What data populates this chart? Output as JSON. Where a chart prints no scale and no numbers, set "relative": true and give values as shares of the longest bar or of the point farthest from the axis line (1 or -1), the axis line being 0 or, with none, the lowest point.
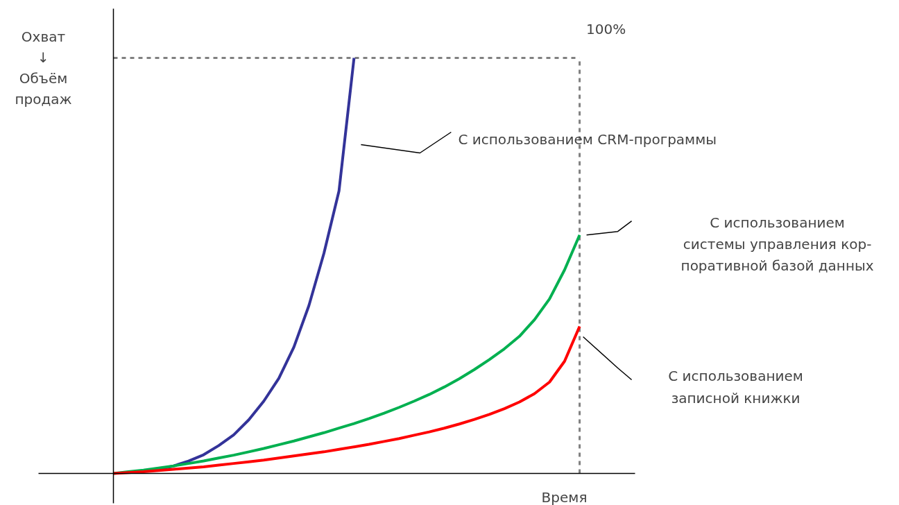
{
  "chart_data": {
    "type": "line",
    "relative": true,
    "xlabel": "Время",
    "ylabel": "Охват\n↓\nОбъём\nпродаж",
    "grid": false,
    "line_style": "solid",
    "marker": "none",
    "categories": [
      null,
      null,
      null,
      null,
      null,
      null,
      null,
      null,
      null,
      null,
      null,
      null,
      null,
      null,
      null,
      null,
      null,
      null,
      null,
      null,
      null,
      null,
      null,
      null,
      null,
      null,
      null,
      null,
      null,
      null,
      null,
      null
    ],
    "series": [
      {
        "name": "С использованием CRM-программы",
        "color": "#333399",
        "values": [
          null,
          null,
          null,
          0.01,
          0.018,
          0.03,
          0.045,
          0.067,
          0.093,
          0.129,
          0.174,
          0.229,
          0.304,
          0.404,
          0.53,
          0.68,
          1.0,
          null,
          null,
          null,
          null,
          null,
          null,
          null,
          null,
          null,
          null,
          null,
          null,
          null,
          null,
          null
        ]
      },
      {
        "name": "С использованием\nсистемы управления кор-\nпоративной базой данных",
        "color": "#00b050",
        "values": [
          0,
          0.004,
          0.008,
          0.013,
          0.018,
          0.024,
          0.03,
          0.037,
          0.044,
          0.052,
          0.06,
          0.069,
          0.078,
          0.088,
          0.098,
          0.109,
          0.12,
          0.132,
          0.145,
          0.159,
          0.174,
          0.19,
          0.208,
          0.228,
          0.25,
          0.274,
          0.3,
          0.33,
          0.37,
          0.42,
          0.49,
          0.574
        ]
      },
      {
        "name": "С использованием\nзаписной книжки",
        "color": "#ff0000",
        "values": [
          0,
          0.002,
          0.004,
          0.007,
          0.01,
          0.013,
          0.016,
          0.02,
          0.024,
          0.028,
          0.032,
          0.037,
          0.042,
          0.047,
          0.052,
          0.058,
          0.064,
          0.07,
          0.077,
          0.084,
          0.092,
          0.1,
          0.109,
          0.119,
          0.13,
          0.142,
          0.156,
          0.172,
          0.192,
          0.22,
          0.27,
          0.354
        ]
      }
    ],
    "ref_lines": [
      {
        "axis": "y",
        "value": 1,
        "label": "100%",
        "color": "#808080",
        "line_style": "dashed"
      }
    ]
  }
}
